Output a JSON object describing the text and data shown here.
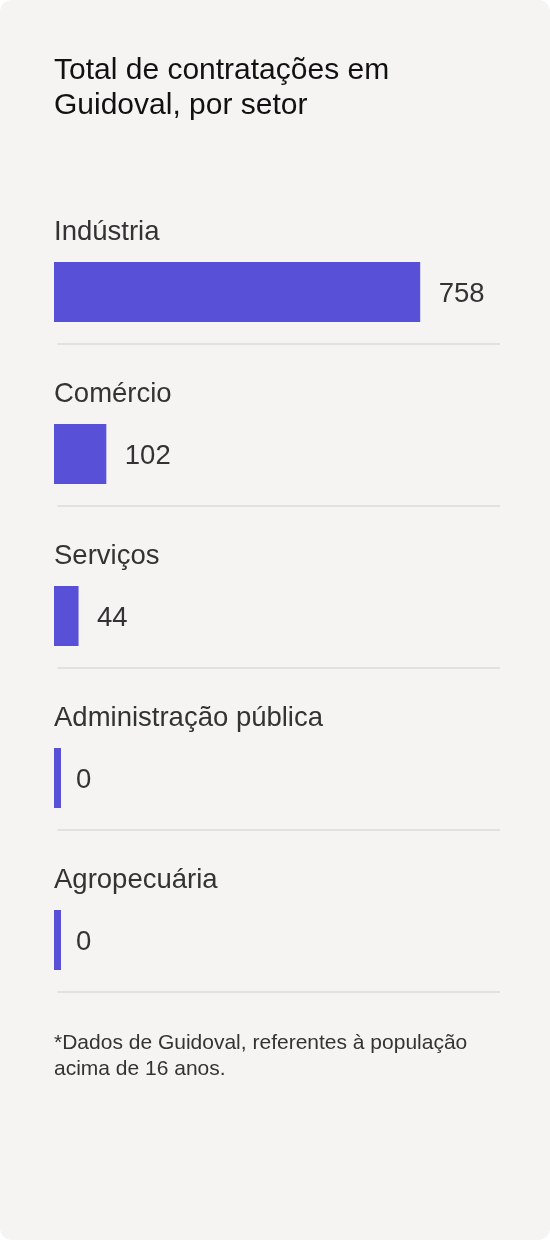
{
  "chart_data": {
    "type": "bar",
    "orientation": "horizontal",
    "title": "Total de contratações em Guidoval, por setor",
    "categories": [
      "Indústria",
      "Comércio",
      "Serviços",
      "Administração pública",
      "Agropecuária"
    ],
    "values": [
      758,
      102,
      44,
      0,
      0
    ],
    "color": "#5850d6",
    "data_labels": true,
    "grid": "y",
    "annotations": [
      "*Dados de Guidoval, referentes à população acima de 16 anos."
    ]
  }
}
